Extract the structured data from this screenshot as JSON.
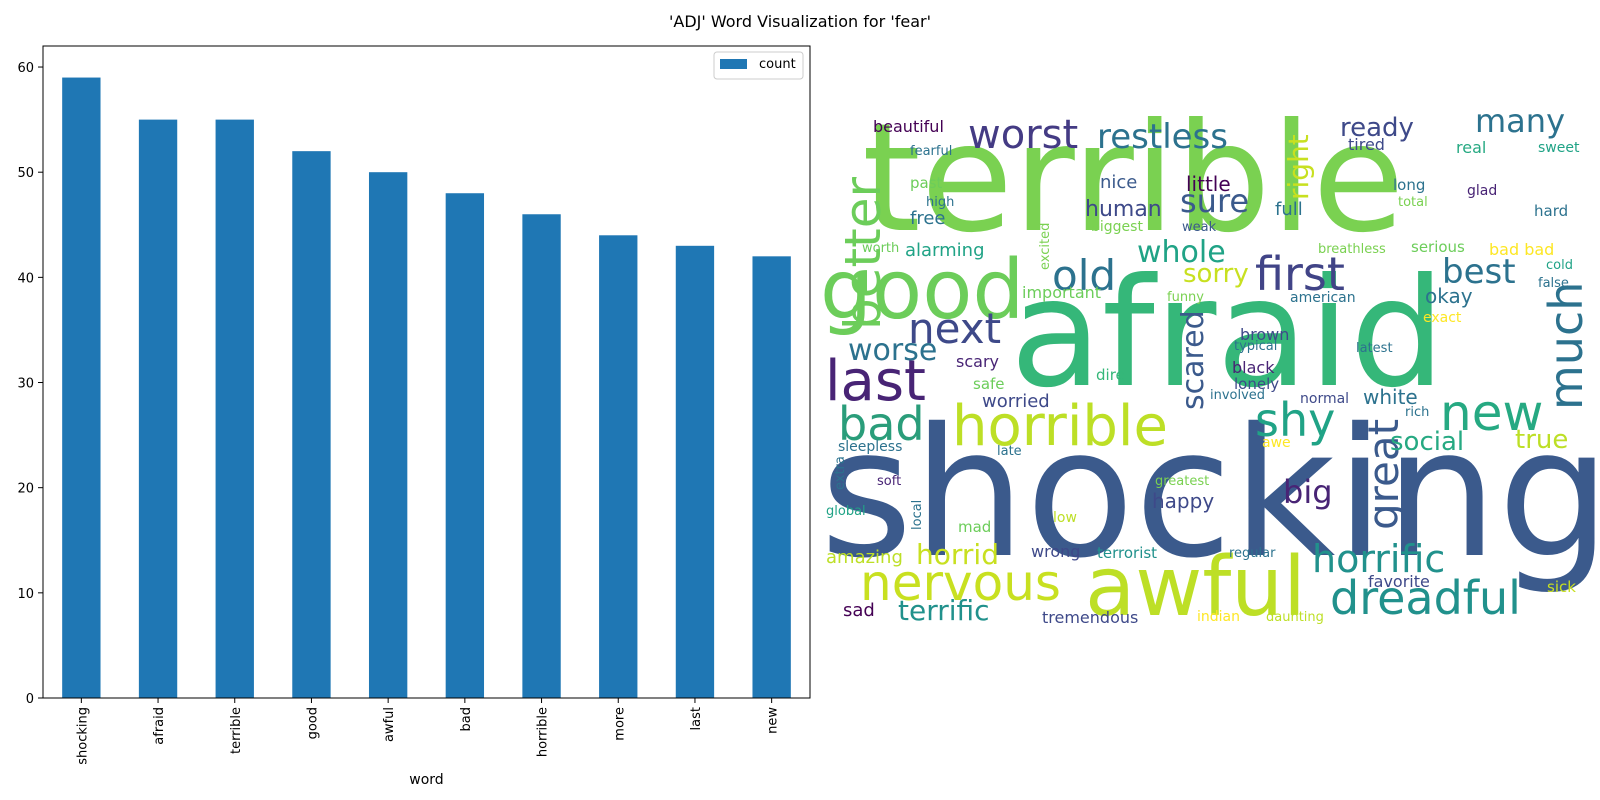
{
  "figure": {
    "title": "'ADJ' Word Visualization for 'fear'"
  },
  "chart_data": [
    {
      "type": "bar",
      "title": "",
      "xlabel": "word",
      "ylabel": "",
      "ylim": [
        0,
        62
      ],
      "yticks": [
        0,
        10,
        20,
        30,
        40,
        50,
        60
      ],
      "categories": [
        "shocking",
        "afraid",
        "terrible",
        "good",
        "awful",
        "bad",
        "horrible",
        "more",
        "last",
        "new"
      ],
      "series": [
        {
          "name": "count",
          "values": [
            59,
            55,
            55,
            52,
            50,
            48,
            46,
            44,
            43,
            42
          ],
          "color": "#1f77b4"
        }
      ],
      "legend": "top-right",
      "grid": false
    }
  ],
  "wordcloud": {
    "words": [
      {
        "text": "shocking",
        "color": "#3b5a8c",
        "size": 178,
        "rotate": 0
      },
      {
        "text": "afraid",
        "color": "#35b779",
        "size": 150,
        "rotate": 0
      },
      {
        "text": "terrible",
        "color": "#7ad151",
        "size": 150,
        "rotate": 0
      },
      {
        "text": "good",
        "color": "#6ccd5a",
        "size": 82,
        "rotate": 0
      },
      {
        "text": "awful",
        "color": "#bddf26",
        "size": 82,
        "rotate": 0
      },
      {
        "text": "horrible",
        "color": "#bddf26",
        "size": 56,
        "rotate": 0
      },
      {
        "text": "last",
        "color": "#482475",
        "size": 56,
        "rotate": 0
      },
      {
        "text": "nervous",
        "color": "#c8e020",
        "size": 50,
        "rotate": 0
      },
      {
        "text": "dreadful",
        "color": "#21918c",
        "size": 46,
        "rotate": 0
      },
      {
        "text": "better",
        "color": "#6ccd5a",
        "size": 50,
        "rotate": -90
      },
      {
        "text": "bad",
        "color": "#2a9d7a",
        "size": 46,
        "rotate": 0
      },
      {
        "text": "first",
        "color": "#414487",
        "size": 46,
        "rotate": 0
      },
      {
        "text": "new",
        "color": "#26a982",
        "size": 50,
        "rotate": 0
      },
      {
        "text": "shy",
        "color": "#20a386",
        "size": 46,
        "rotate": 0
      },
      {
        "text": "great",
        "color": "#3b5a8c",
        "size": 42,
        "rotate": -90
      },
      {
        "text": "much",
        "color": "#2c728e",
        "size": 46,
        "rotate": -90
      },
      {
        "text": "worst",
        "color": "#443b84",
        "size": 40,
        "rotate": 0
      },
      {
        "text": "restless",
        "color": "#2c728e",
        "size": 34,
        "rotate": 0
      },
      {
        "text": "old",
        "color": "#2c728e",
        "size": 42,
        "rotate": 0
      },
      {
        "text": "next",
        "color": "#3e4989",
        "size": 42,
        "rotate": 0
      },
      {
        "text": "horrific",
        "color": "#21918c",
        "size": 38,
        "rotate": 0
      },
      {
        "text": "terrific",
        "color": "#21918c",
        "size": 28,
        "rotate": 0
      },
      {
        "text": "best",
        "color": "#2c728e",
        "size": 34,
        "rotate": 0
      },
      {
        "text": "many",
        "color": "#2c728e",
        "size": 32,
        "rotate": 0
      },
      {
        "text": "ready",
        "color": "#3e4989",
        "size": 26,
        "rotate": 0
      },
      {
        "text": "sure",
        "color": "#3b5a8c",
        "size": 32,
        "rotate": 0
      },
      {
        "text": "whole",
        "color": "#20a386",
        "size": 30,
        "rotate": 0
      },
      {
        "text": "sorry",
        "color": "#c8e020",
        "size": 26,
        "rotate": 0
      },
      {
        "text": "worse",
        "color": "#2c728e",
        "size": 30,
        "rotate": 0
      },
      {
        "text": "big",
        "color": "#482475",
        "size": 32,
        "rotate": 0
      },
      {
        "text": "scared",
        "color": "#3b5a8c",
        "size": 30,
        "rotate": -90
      },
      {
        "text": "right",
        "color": "#c8e020",
        "size": 28,
        "rotate": -90
      },
      {
        "text": "horrid",
        "color": "#c8e020",
        "size": 28,
        "rotate": 0
      },
      {
        "text": "social",
        "color": "#26a982",
        "size": 26,
        "rotate": 0
      },
      {
        "text": "true",
        "color": "#bddf26",
        "size": 26,
        "rotate": 0
      },
      {
        "text": "human",
        "color": "#3e4989",
        "size": 22,
        "rotate": 0
      },
      {
        "text": "little",
        "color": "#440154",
        "size": 20,
        "rotate": 0
      },
      {
        "text": "nice",
        "color": "#3b5a8c",
        "size": 18,
        "rotate": 0
      },
      {
        "text": "full",
        "color": "#2c728e",
        "size": 18,
        "rotate": 0
      },
      {
        "text": "happy",
        "color": "#3e4989",
        "size": 20,
        "rotate": 0
      },
      {
        "text": "okay",
        "color": "#2c728e",
        "size": 20,
        "rotate": 0
      },
      {
        "text": "white",
        "color": "#2c728e",
        "size": 20,
        "rotate": 0
      },
      {
        "text": "alarming",
        "color": "#20a386",
        "size": 18,
        "rotate": 0
      },
      {
        "text": "free",
        "color": "#2c728e",
        "size": 18,
        "rotate": 0
      },
      {
        "text": "amazing",
        "color": "#bddf26",
        "size": 18,
        "rotate": 0
      },
      {
        "text": "worried",
        "color": "#3e4989",
        "size": 18,
        "rotate": 0
      },
      {
        "text": "scary",
        "color": "#482475",
        "size": 16,
        "rotate": 0
      },
      {
        "text": "wrong",
        "color": "#3e4989",
        "size": 16,
        "rotate": 0
      },
      {
        "text": "tremendous",
        "color": "#3e4989",
        "size": 16,
        "rotate": 0
      },
      {
        "text": "brown",
        "color": "#3e4989",
        "size": 16,
        "rotate": 0
      },
      {
        "text": "black",
        "color": "#482475",
        "size": 16,
        "rotate": 0
      },
      {
        "text": "sad",
        "color": "#440154",
        "size": 18,
        "rotate": 0
      },
      {
        "text": "favorite",
        "color": "#3e4989",
        "size": 16,
        "rotate": 0
      },
      {
        "text": "beautiful",
        "color": "#440154",
        "size": 16,
        "rotate": 0
      },
      {
        "text": "important",
        "color": "#6ccd5a",
        "size": 16,
        "rotate": 0
      },
      {
        "text": "safe",
        "color": "#6ccd5a",
        "size": 15,
        "rotate": 0
      },
      {
        "text": "tired",
        "color": "#3e4989",
        "size": 16,
        "rotate": 0
      },
      {
        "text": "real",
        "color": "#26a982",
        "size": 16,
        "rotate": 0
      },
      {
        "text": "long",
        "color": "#2c728e",
        "size": 15,
        "rotate": 0
      },
      {
        "text": "hard",
        "color": "#2c728e",
        "size": 15,
        "rotate": 0
      },
      {
        "text": "serious",
        "color": "#6ccd5a",
        "size": 15,
        "rotate": 0
      },
      {
        "text": "bad bad",
        "color": "#fde725",
        "size": 16,
        "rotate": 0
      },
      {
        "text": "terrorist",
        "color": "#21918c",
        "size": 15,
        "rotate": 0
      },
      {
        "text": "sick",
        "color": "#c8e020",
        "size": 15,
        "rotate": 0
      },
      {
        "text": "dire",
        "color": "#35b779",
        "size": 15,
        "rotate": 0
      },
      {
        "text": "lonely",
        "color": "#3e4989",
        "size": 15,
        "rotate": 0
      },
      {
        "text": "mad",
        "color": "#6ccd5a",
        "size": 15,
        "rotate": 0
      },
      {
        "text": "past",
        "color": "#6ccd5a",
        "size": 15,
        "rotate": 0
      },
      {
        "text": "sleepless",
        "color": "#2c728e",
        "size": 14,
        "rotate": 0
      },
      {
        "text": "fearful",
        "color": "#2c728e",
        "size": 13,
        "rotate": 0
      },
      {
        "text": "high",
        "color": "#2c728e",
        "size": 13,
        "rotate": 0
      },
      {
        "text": "biggest",
        "color": "#7ad151",
        "size": 14,
        "rotate": 0
      },
      {
        "text": "weak",
        "color": "#3b5a8c",
        "size": 13,
        "rotate": 0
      },
      {
        "text": "worth",
        "color": "#6ccd5a",
        "size": 13,
        "rotate": 0
      },
      {
        "text": "excited",
        "color": "#7ad151",
        "size": 13,
        "rotate": -90
      },
      {
        "text": "funny",
        "color": "#7ad151",
        "size": 13,
        "rotate": 0
      },
      {
        "text": "american",
        "color": "#2c728e",
        "size": 14,
        "rotate": 0
      },
      {
        "text": "breathless",
        "color": "#7ad151",
        "size": 13,
        "rotate": 0
      },
      {
        "text": "cold",
        "color": "#20a386",
        "size": 13,
        "rotate": 0
      },
      {
        "text": "false",
        "color": "#2c728e",
        "size": 13,
        "rotate": 0
      },
      {
        "text": "exact",
        "color": "#fde725",
        "size": 14,
        "rotate": 0
      },
      {
        "text": "typical",
        "color": "#2c728e",
        "size": 13,
        "rotate": 0
      },
      {
        "text": "latest",
        "color": "#2c728e",
        "size": 13,
        "rotate": 0
      },
      {
        "text": "involved",
        "color": "#2c728e",
        "size": 13,
        "rotate": 0
      },
      {
        "text": "normal",
        "color": "#3e4989",
        "size": 14,
        "rotate": 0
      },
      {
        "text": "rich",
        "color": "#2c728e",
        "size": 13,
        "rotate": 0
      },
      {
        "text": "awe",
        "color": "#fde725",
        "size": 14,
        "rotate": 0
      },
      {
        "text": "late",
        "color": "#2c728e",
        "size": 13,
        "rotate": 0
      },
      {
        "text": "extra",
        "color": "#2c728e",
        "size": 13,
        "rotate": -90
      },
      {
        "text": "soft",
        "color": "#482475",
        "size": 13,
        "rotate": 0
      },
      {
        "text": "global",
        "color": "#20a386",
        "size": 13,
        "rotate": 0
      },
      {
        "text": "local",
        "color": "#2c728e",
        "size": 13,
        "rotate": -90
      },
      {
        "text": "greatest",
        "color": "#7ad151",
        "size": 13,
        "rotate": 0
      },
      {
        "text": "low",
        "color": "#bddf26",
        "size": 14,
        "rotate": 0
      },
      {
        "text": "regular",
        "color": "#2c728e",
        "size": 13,
        "rotate": 0
      },
      {
        "text": "indian",
        "color": "#fde725",
        "size": 14,
        "rotate": 0
      },
      {
        "text": "daunting",
        "color": "#bddf26",
        "size": 13,
        "rotate": 0
      },
      {
        "text": "glad",
        "color": "#482475",
        "size": 14,
        "rotate": 0
      },
      {
        "text": "total",
        "color": "#7ad151",
        "size": 13,
        "rotate": 0
      },
      {
        "text": "sweet",
        "color": "#20a386",
        "size": 14,
        "rotate": 0
      }
    ]
  }
}
